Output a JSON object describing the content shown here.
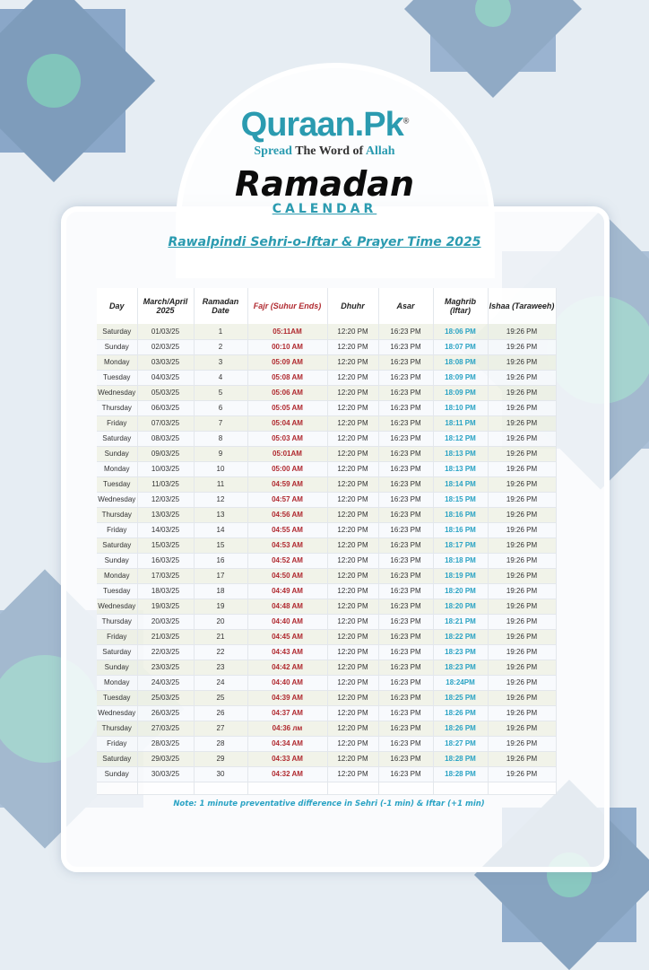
{
  "brand": {
    "logo": "Quraan.Pk",
    "registered": "®",
    "tagline_1": "Spread",
    "tagline_2": "The Word of",
    "tagline_3": "Allah"
  },
  "title": "Ramadan",
  "subtitle": "CALENDAR",
  "heading": "Rawalpindi Sehri-o-Iftar & Prayer Time 2025",
  "colors": {
    "accent": "#2b9bb0",
    "fajr": "#b02a30",
    "maghrib": "#2aa3c4"
  },
  "table": {
    "headers": [
      "Day",
      "March/April 2025",
      "Ramadan Date",
      "Fajr (Suhur Ends)",
      "Dhuhr",
      "Asar",
      "Maghrib (Iftar)",
      "Ishaa (Taraweeh)"
    ],
    "rows": [
      [
        "Saturday",
        "01/03/25",
        "1",
        "05:11AM",
        "12:20 PM",
        "16:23 PM",
        "18:06 PM",
        "19:26 PM"
      ],
      [
        "Sunday",
        "02/03/25",
        "2",
        "00:10 AM",
        "12:20 PM",
        "16:23 PM",
        "18:07 PM",
        "19:26 PM"
      ],
      [
        "Monday",
        "03/03/25",
        "3",
        "05:09 AM",
        "12:20 PM",
        "16:23 PM",
        "18:08 PM",
        "19:26 PM"
      ],
      [
        "Tuesday",
        "04/03/25",
        "4",
        "05:08 AM",
        "12:20 PM",
        "16:23 PM",
        "18:09 PM",
        "19:26 PM"
      ],
      [
        "Wednesday",
        "05/03/25",
        "5",
        "05:06 AM",
        "12:20 PM",
        "16:23 PM",
        "18:09 PM",
        "19:26 PM"
      ],
      [
        "Thursday",
        "06/03/25",
        "6",
        "05:05 AM",
        "12:20 PM",
        "16:23 PM",
        "18:10 PM",
        "19:26 PM"
      ],
      [
        "Friday",
        "07/03/25",
        "7",
        "05:04 AM",
        "12:20 PM",
        "16:23 PM",
        "18:11 PM",
        "19:26 PM"
      ],
      [
        "Saturday",
        "08/03/25",
        "8",
        "05:03 AM",
        "12:20 PM",
        "16:23 PM",
        "18:12 PM",
        "19:26 PM"
      ],
      [
        "Sunday",
        "09/03/25",
        "9",
        "05:01AM",
        "12:20 PM",
        "16:23 PM",
        "18:13 PM",
        "19:26 PM"
      ],
      [
        "Monday",
        "10/03/25",
        "10",
        "05:00 AM",
        "12:20 PM",
        "16:23 PM",
        "18:13 PM",
        "19:26 PM"
      ],
      [
        "Tuesday",
        "11/03/25",
        "11",
        "04:59 AM",
        "12:20 PM",
        "16:23 PM",
        "18:14 PM",
        "19:26 PM"
      ],
      [
        "Wednesday",
        "12/03/25",
        "12",
        "04:57 AM",
        "12:20 PM",
        "16:23 PM",
        "18:15 PM",
        "19:26 PM"
      ],
      [
        "Thursday",
        "13/03/25",
        "13",
        "04:56 AM",
        "12:20 PM",
        "16:23 PM",
        "18:16 PM",
        "19:26 PM"
      ],
      [
        "Friday",
        "14/03/25",
        "14",
        "04:55 AM",
        "12:20 PM",
        "16:23 PM",
        "18:16 PM",
        "19:26 PM"
      ],
      [
        "Saturday",
        "15/03/25",
        "15",
        "04:53 AM",
        "12:20 PM",
        "16:23 PM",
        "18:17 PM",
        "19:26 PM"
      ],
      [
        "Sunday",
        "16/03/25",
        "16",
        "04:52 AM",
        "12:20 PM",
        "16:23 PM",
        "18:18 PM",
        "19:26 PM"
      ],
      [
        "Monday",
        "17/03/25",
        "17",
        "04:50 AM",
        "12:20 PM",
        "16:23 PM",
        "18:19 PM",
        "19:26 PM"
      ],
      [
        "Tuesday",
        "18/03/25",
        "18",
        "04:49 AM",
        "12:20 PM",
        "16:23 PM",
        "18:20 PM",
        "19:26 PM"
      ],
      [
        "Wednesday",
        "19/03/25",
        "19",
        "04:48 AM",
        "12:20 PM",
        "16:23 PM",
        "18:20 PM",
        "19:26 PM"
      ],
      [
        "Thursday",
        "20/03/25",
        "20",
        "04:40 AM",
        "12:20 PM",
        "16:23 PM",
        "18:21 PM",
        "19:26 PM"
      ],
      [
        "Friday",
        "21/03/25",
        "21",
        "04:45 AM",
        "12:20 PM",
        "16:23 PM",
        "18:22 PM",
        "19:26 PM"
      ],
      [
        "Saturday",
        "22/03/25",
        "22",
        "04:43 AM",
        "12:20 PM",
        "16:23 PM",
        "18:23 PM",
        "19:26 PM"
      ],
      [
        "Sunday",
        "23/03/25",
        "23",
        "04:42 AM",
        "12:20 PM",
        "16:23 PM",
        "18:23 PM",
        "19:26 PM"
      ],
      [
        "Monday",
        "24/03/25",
        "24",
        "04:40 AM",
        "12:20 PM",
        "16:23 PM",
        "18:24PM",
        "19:26 PM"
      ],
      [
        "Tuesday",
        "25/03/25",
        "25",
        "04:39 AM",
        "12:20 PM",
        "16:23 PM",
        "18:25 PM",
        "19:26 PM"
      ],
      [
        "Wednesday",
        "26/03/25",
        "26",
        "04:37 AM",
        "12:20 PM",
        "16:23 PM",
        "18:26 PM",
        "19:26 PM"
      ],
      [
        "Thursday",
        "27/03/25",
        "27",
        "04:36 лм",
        "12:20 PM",
        "16:23 PM",
        "18:26 PM",
        "19:26 PM"
      ],
      [
        "Friday",
        "28/03/25",
        "28",
        "04:34 AM",
        "12:20 PM",
        "16:23 PM",
        "18:27 PM",
        "19:26 PM"
      ],
      [
        "Saturday",
        "29/03/25",
        "29",
        "04:33 AM",
        "12:20 PM",
        "16:23 PM",
        "18:28 PM",
        "19:26 PM"
      ],
      [
        "Sunday",
        "30/03/25",
        "30",
        "04:32 AM",
        "12:20 PM",
        "16:23 PM",
        "18:28 PM",
        "19:26 PM"
      ]
    ]
  },
  "note": "Note: 1 minute preventative difference in Sehri (-1 min) & Iftar (+1 min)"
}
